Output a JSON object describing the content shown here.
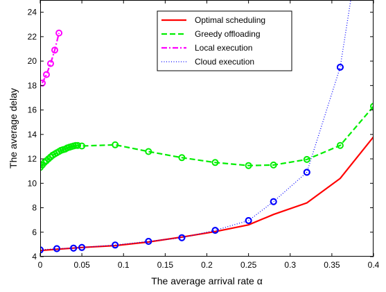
{
  "chart_data": {
    "type": "line",
    "title": "",
    "xlabel": "The average arrival rate α",
    "ylabel": "The average delay",
    "xlim": [
      0,
      0.4
    ],
    "ylim": [
      4,
      25
    ],
    "xticks": [
      0,
      0.05,
      0.1,
      0.15,
      0.2,
      0.25,
      0.3,
      0.35,
      0.4
    ],
    "xtick_labels": [
      "0",
      "0.05",
      "0.1",
      "0.15",
      "0.2",
      "0.25",
      "0.3",
      "0.35",
      "0.4"
    ],
    "yticks": [
      4,
      6,
      8,
      10,
      12,
      14,
      16,
      18,
      20,
      22,
      24
    ],
    "ytick_labels": [
      "4",
      "6",
      "8",
      "10",
      "12",
      "14",
      "16",
      "18",
      "20",
      "22",
      "24"
    ],
    "grid": false,
    "legend_position": "top-right",
    "series": [
      {
        "name": "Optimal scheduling",
        "color": "#ff0000",
        "line_style": "solid",
        "marker": "none",
        "x": [
          0,
          0.02,
          0.04,
          0.05,
          0.09,
          0.13,
          0.17,
          0.21,
          0.25,
          0.28,
          0.32,
          0.36,
          0.4
        ],
        "y": [
          4.5,
          4.6,
          4.7,
          4.75,
          4.9,
          5.2,
          5.6,
          6.05,
          6.6,
          7.45,
          8.4,
          10.4,
          13.8
        ]
      },
      {
        "name": "Greedy offloading",
        "color": "#00ee00",
        "line_style": "dashed",
        "marker": "circle",
        "marker_color": "#00ee00",
        "x": [
          0,
          0.0025,
          0.005,
          0.0075,
          0.01,
          0.0125,
          0.015,
          0.0175,
          0.02,
          0.0225,
          0.025,
          0.0275,
          0.03,
          0.0325,
          0.035,
          0.0375,
          0.04,
          0.0425,
          0.045,
          0.05,
          0.09,
          0.13,
          0.17,
          0.21,
          0.25,
          0.28,
          0.32,
          0.36,
          0.4
        ],
        "y": [
          11.3,
          11.5,
          11.7,
          11.85,
          12.0,
          12.15,
          12.3,
          12.4,
          12.5,
          12.6,
          12.7,
          12.75,
          12.8,
          12.9,
          12.95,
          13.0,
          13.05,
          13.1,
          13.1,
          13.05,
          13.15,
          12.6,
          12.1,
          11.7,
          11.45,
          11.5,
          11.95,
          13.1,
          16.3
        ]
      },
      {
        "name": "Local execution",
        "color": "#ff00ff",
        "line_style": "dashdot",
        "marker": "circle",
        "marker_color": "#ff00ff",
        "x": [
          0.0025,
          0.0075,
          0.0125,
          0.0175,
          0.0225
        ],
        "y": [
          18.2,
          18.9,
          19.8,
          20.9,
          22.3
        ]
      },
      {
        "name": "Cloud execution",
        "color": "#0000ff",
        "line_style": "dotted",
        "marker": "circle",
        "marker_color": "#0000ff",
        "x": [
          0,
          0.02,
          0.04,
          0.05,
          0.09,
          0.13,
          0.17,
          0.21,
          0.25,
          0.28,
          0.32,
          0.36,
          0.375
        ],
        "y": [
          4.55,
          4.65,
          4.7,
          4.75,
          4.95,
          5.25,
          5.55,
          6.15,
          6.95,
          8.5,
          10.9,
          19.5,
          26
        ]
      }
    ],
    "marker_overlays": [
      {
        "on_series": "Optimal scheduling",
        "color": "#0000ff",
        "x": [
          0,
          0.02,
          0.04,
          0.05,
          0.09,
          0.13,
          0.17,
          0.21,
          0.25,
          0.28,
          0.32,
          0.36
        ],
        "y": [
          4.55,
          4.65,
          4.7,
          4.75,
          4.95,
          5.25,
          5.55,
          6.15,
          6.95,
          8.5,
          10.9,
          19.5
        ]
      }
    ]
  }
}
